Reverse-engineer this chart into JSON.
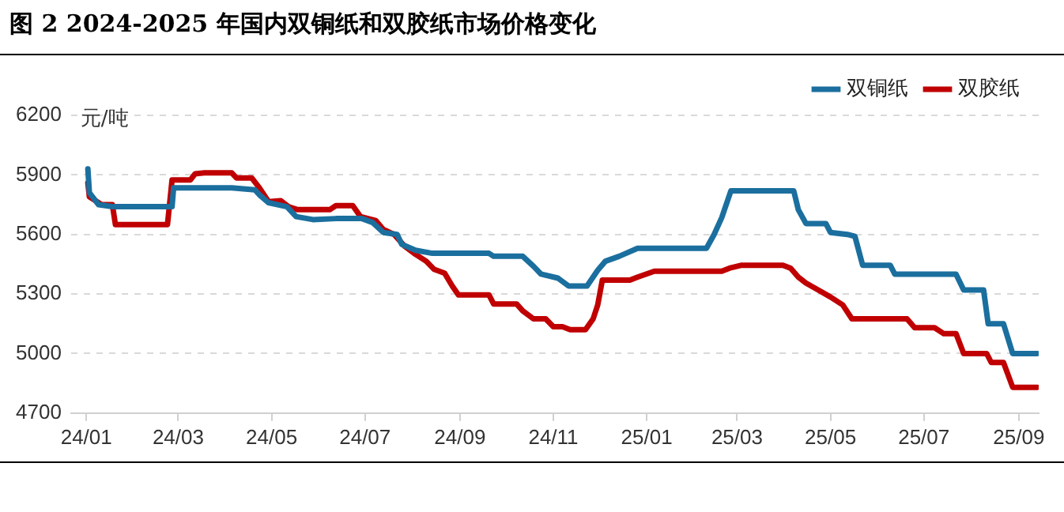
{
  "chart_data": {
    "type": "line",
    "title": "图 2 2024-2025 年国内双铜纸和双胶纸市场价格变化",
    "ylabel": "元/吨",
    "xlim": [
      "2023-12-22",
      "2025-09-14"
    ],
    "xticks": [
      {
        "value": "2024-01-01",
        "label": "24/01"
      },
      {
        "value": "2024-03-01",
        "label": "24/03"
      },
      {
        "value": "2024-05-01",
        "label": "24/05"
      },
      {
        "value": "2024-07-01",
        "label": "24/07"
      },
      {
        "value": "2024-09-01",
        "label": "24/09"
      },
      {
        "value": "2024-11-01",
        "label": "24/11"
      },
      {
        "value": "2025-01-01",
        "label": "25/01"
      },
      {
        "value": "2025-03-01",
        "label": "25/03"
      },
      {
        "value": "2025-05-01",
        "label": "25/05"
      },
      {
        "value": "2025-07-01",
        "label": "25/07"
      },
      {
        "value": "2025-09-01",
        "label": "25/09"
      }
    ],
    "ylim": [
      4700,
      6200
    ],
    "yticks": [
      4700,
      5000,
      5300,
      5600,
      5900,
      6200
    ],
    "grid": "y",
    "legend": "top right",
    "marker": "none",
    "line_style": "solid",
    "series": [
      {
        "name": "双铜纸",
        "color": "#1b6f9e",
        "x": [
          "2024-01-02",
          "2024-01-03",
          "2024-01-09",
          "2024-01-18",
          "2024-02-26",
          "2024-02-27",
          "2024-04-05",
          "2024-04-20",
          "2024-04-23",
          "2024-04-29",
          "2024-05-11",
          "2024-05-17",
          "2024-05-28",
          "2024-06-12",
          "2024-06-29",
          "2024-07-06",
          "2024-07-13",
          "2024-07-22",
          "2024-07-25",
          "2024-08-03",
          "2024-08-14",
          "2024-09-20",
          "2024-09-23",
          "2024-10-12",
          "2024-10-19",
          "2024-10-24",
          "2024-11-04",
          "2024-11-11",
          "2024-11-23",
          "2024-11-30",
          "2024-12-05",
          "2024-12-14",
          "2024-12-26",
          "2025-02-09",
          "2025-02-14",
          "2025-02-19",
          "2025-02-25",
          "2025-04-07",
          "2025-04-10",
          "2025-04-15",
          "2025-04-28",
          "2025-05-01",
          "2025-05-12",
          "2025-05-17",
          "2025-05-22",
          "2025-06-09",
          "2025-06-12",
          "2025-07-22",
          "2025-07-27",
          "2025-08-09",
          "2025-08-12",
          "2025-08-22",
          "2025-08-28",
          "2025-09-13"
        ],
        "values": [
          5930,
          5810,
          5750,
          5740,
          5740,
          5835,
          5835,
          5825,
          5800,
          5760,
          5740,
          5690,
          5675,
          5680,
          5680,
          5660,
          5610,
          5600,
          5550,
          5520,
          5505,
          5505,
          5490,
          5490,
          5440,
          5400,
          5380,
          5340,
          5340,
          5420,
          5465,
          5490,
          5530,
          5530,
          5600,
          5685,
          5820,
          5820,
          5725,
          5655,
          5655,
          5610,
          5600,
          5590,
          5445,
          5445,
          5400,
          5400,
          5320,
          5320,
          5150,
          5150,
          5000,
          5000
        ]
      },
      {
        "name": "双胶纸",
        "color": "#c00000",
        "x": [
          "2024-01-02",
          "2024-01-03",
          "2024-01-11",
          "2024-01-18",
          "2024-01-20",
          "2024-02-23",
          "2024-02-26",
          "2024-03-09",
          "2024-03-12",
          "2024-03-18",
          "2024-04-05",
          "2024-04-08",
          "2024-04-18",
          "2024-04-23",
          "2024-04-29",
          "2024-05-07",
          "2024-05-12",
          "2024-05-18",
          "2024-06-08",
          "2024-06-12",
          "2024-06-23",
          "2024-06-28",
          "2024-07-08",
          "2024-07-13",
          "2024-07-20",
          "2024-07-27",
          "2024-08-03",
          "2024-08-10",
          "2024-08-15",
          "2024-08-22",
          "2024-08-27",
          "2024-08-31",
          "2024-09-20",
          "2024-09-23",
          "2024-10-08",
          "2024-10-12",
          "2024-10-19",
          "2024-10-27",
          "2024-11-01",
          "2024-11-07",
          "2024-11-12",
          "2024-11-22",
          "2024-11-27",
          "2024-11-30",
          "2024-12-03",
          "2024-12-21",
          "2024-12-26",
          "2025-01-06",
          "2025-02-19",
          "2025-02-24",
          "2025-03-04",
          "2025-03-31",
          "2025-04-05",
          "2025-04-10",
          "2025-04-15",
          "2025-04-23",
          "2025-05-01",
          "2025-05-09",
          "2025-05-15",
          "2025-06-20",
          "2025-06-25",
          "2025-07-08",
          "2025-07-14",
          "2025-07-22",
          "2025-07-27",
          "2025-08-11",
          "2025-08-14",
          "2025-08-22",
          "2025-08-28",
          "2025-09-13"
        ],
        "values": [
          5860,
          5790,
          5750,
          5750,
          5650,
          5650,
          5875,
          5875,
          5905,
          5910,
          5910,
          5885,
          5885,
          5835,
          5765,
          5770,
          5740,
          5725,
          5725,
          5745,
          5745,
          5690,
          5670,
          5625,
          5600,
          5540,
          5500,
          5465,
          5425,
          5405,
          5340,
          5295,
          5295,
          5250,
          5250,
          5215,
          5175,
          5175,
          5135,
          5135,
          5120,
          5120,
          5175,
          5245,
          5370,
          5370,
          5385,
          5415,
          5415,
          5430,
          5445,
          5445,
          5430,
          5385,
          5355,
          5320,
          5285,
          5245,
          5175,
          5175,
          5130,
          5130,
          5100,
          5100,
          5000,
          5000,
          4955,
          4955,
          4830,
          4830
        ]
      }
    ]
  }
}
